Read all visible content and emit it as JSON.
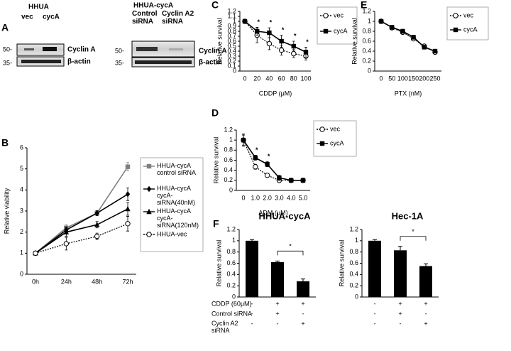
{
  "panel_labels": [
    "A",
    "B",
    "C",
    "D",
    "E",
    "F"
  ],
  "panel_a": {
    "left": {
      "title": "HHUA",
      "lanes": [
        "vec",
        "cycA"
      ],
      "markers": [
        "50-",
        "35-"
      ],
      "bands": [
        "Cyclin A",
        "β-actin"
      ]
    },
    "right": {
      "title": "HHUA-cycA",
      "lanes": [
        "Control\nsiRNA",
        "Cyclin A2\nsiRNA"
      ],
      "markers": [
        "50-",
        "35-"
      ],
      "bands": [
        "Cyclin A",
        "β-actin"
      ]
    }
  },
  "chart_data": [
    {
      "type": "line",
      "y_label": "Relative viability",
      "categories": [
        "0h",
        "24h",
        "48h",
        "72h"
      ],
      "ylim": [
        0,
        6
      ],
      "yticks": [
        0,
        1,
        2,
        3,
        4,
        5,
        6
      ],
      "series": [
        {
          "name": "HHUA-cycA\ncontrol siRNA",
          "color": "#808080",
          "line_style": "solid",
          "marker": "square",
          "values": [
            1,
            2.2,
            2.9,
            5.1
          ],
          "errors": [
            0.05,
            0.15,
            0.1,
            0.2
          ]
        },
        {
          "name": "HHUA-cycA\ncycA-\nsiRNA(40nM)",
          "color": "#000000",
          "line_style": "solid",
          "marker": "diamond",
          "values": [
            1,
            2.1,
            2.9,
            3.8
          ],
          "errors": [
            0.05,
            0.15,
            0.12,
            0.3
          ]
        },
        {
          "name": "HHUA-cycA\ncycA-\nsiRNA(120nM)",
          "color": "#000000",
          "line_style": "solid",
          "marker": "triangle",
          "values": [
            1,
            2.0,
            2.35,
            3.1
          ],
          "errors": [
            0.05,
            0.2,
            0.15,
            0.3
          ]
        },
        {
          "name": "HHUA-vec",
          "color": "#000000",
          "line_style": "dotted",
          "marker": "circle-open",
          "values": [
            1,
            1.45,
            1.8,
            2.4
          ],
          "errors": [
            0.05,
            0.3,
            0.15,
            0.35
          ]
        }
      ]
    },
    {
      "type": "line",
      "x_label": "CDDP (μM)",
      "y_label": "Relative survival",
      "categories": [
        "0",
        "20",
        "40",
        "60",
        "80",
        "100"
      ],
      "ylim": [
        0,
        1.2
      ],
      "yticks": [
        0,
        0.1,
        0.2,
        0.3,
        0.4,
        0.5,
        0.6,
        0.7,
        0.8,
        0.9,
        1,
        1.1,
        1.2
      ],
      "annotations": [
        "*",
        "*",
        "*",
        "*",
        "*"
      ],
      "series": [
        {
          "name": "vec",
          "color": "#000000",
          "line_style": "dotted",
          "marker": "circle-open",
          "values": [
            1,
            0.72,
            0.55,
            0.42,
            0.35,
            0.3
          ],
          "errors": [
            0.02,
            0.15,
            0.12,
            0.1,
            0.08,
            0.08
          ]
        },
        {
          "name": "cycA",
          "color": "#000000",
          "line_style": "solid",
          "marker": "square",
          "values": [
            1,
            0.8,
            0.77,
            0.6,
            0.5,
            0.38
          ],
          "errors": [
            0.02,
            0.08,
            0.1,
            0.12,
            0.1,
            0.1
          ]
        }
      ]
    },
    {
      "type": "line",
      "x_label": "ADM (μM)",
      "y_label": "Relative survival",
      "categories": [
        "0",
        "1.0",
        "2.0",
        "3.0",
        "4.0",
        "5.0"
      ],
      "ylim": [
        0,
        1.2
      ],
      "yticks": [
        0,
        0.2,
        0.4,
        0.6,
        0.8,
        1,
        1.2
      ],
      "annotations": [
        "*",
        "*"
      ],
      "series": [
        {
          "name": "vec",
          "color": "#000000",
          "line_style": "dotted",
          "marker": "circle-open",
          "values": [
            1,
            0.47,
            0.3,
            0.2,
            0.2,
            0.2
          ],
          "errors": [
            0.1,
            0.05,
            0.04,
            0.03,
            0.03,
            0.03
          ]
        },
        {
          "name": "cycA",
          "color": "#000000",
          "line_style": "solid",
          "marker": "square",
          "values": [
            1,
            0.65,
            0.52,
            0.25,
            0.2,
            0.2
          ],
          "errors": [
            0.12,
            0.05,
            0.05,
            0.05,
            0.04,
            0.04
          ]
        }
      ]
    },
    {
      "type": "line",
      "x_label": "PTX (nM)",
      "y_label": "Relative survival",
      "categories": [
        "0",
        "50",
        "100",
        "150",
        "200",
        "250"
      ],
      "ylim": [
        0,
        1.2
      ],
      "yticks": [
        0,
        0.2,
        0.4,
        0.6,
        0.8,
        1,
        1.2
      ],
      "series": [
        {
          "name": "vec",
          "color": "#000000",
          "line_style": "dotted",
          "marker": "circle-open",
          "values": [
            1,
            0.87,
            0.78,
            0.65,
            0.5,
            0.38
          ],
          "errors": [
            0.02,
            0.03,
            0.03,
            0.04,
            0.03,
            0.03
          ]
        },
        {
          "name": "cycA",
          "color": "#000000",
          "line_style": "solid",
          "marker": "square",
          "values": [
            1,
            0.88,
            0.8,
            0.68,
            0.48,
            0.4
          ],
          "errors": [
            0.02,
            0.03,
            0.04,
            0.04,
            0.03,
            0.03
          ]
        }
      ]
    },
    {
      "type": "bar",
      "title": "HHUA-cycA",
      "y_label": "Relative survival",
      "categories": [
        null,
        null,
        null
      ],
      "values": [
        1,
        0.62,
        0.28
      ],
      "errors": [
        0.02,
        0.02,
        0.04
      ],
      "color": "#000000",
      "ylim": [
        0,
        1.2
      ],
      "yticks": [
        0,
        0.2,
        0.4,
        0.6,
        0.8,
        1,
        1.2
      ],
      "annotations": [
        "*"
      ]
    },
    {
      "type": "bar",
      "title": "Hec-1A",
      "y_label": "Relative survival",
      "categories": [
        null,
        null,
        null
      ],
      "values": [
        1,
        0.83,
        0.55
      ],
      "errors": [
        0.02,
        0.07,
        0.04
      ],
      "color": "#000000",
      "ylim": [
        0,
        1.2
      ],
      "yticks": [
        0,
        0.2,
        0.4,
        0.6,
        0.8,
        1,
        1.2
      ],
      "annotations": [
        "*"
      ]
    }
  ],
  "panel_f_table": {
    "rows": [
      {
        "label": "CDDP (60μM)",
        "cells": [
          "-",
          "+",
          "+"
        ]
      },
      {
        "label": "Control siRNA",
        "cells": [
          "-",
          "+",
          "-"
        ]
      },
      {
        "label": "Cyclin A2\nsiRNA",
        "cells": [
          "-",
          "-",
          "+"
        ]
      }
    ]
  }
}
